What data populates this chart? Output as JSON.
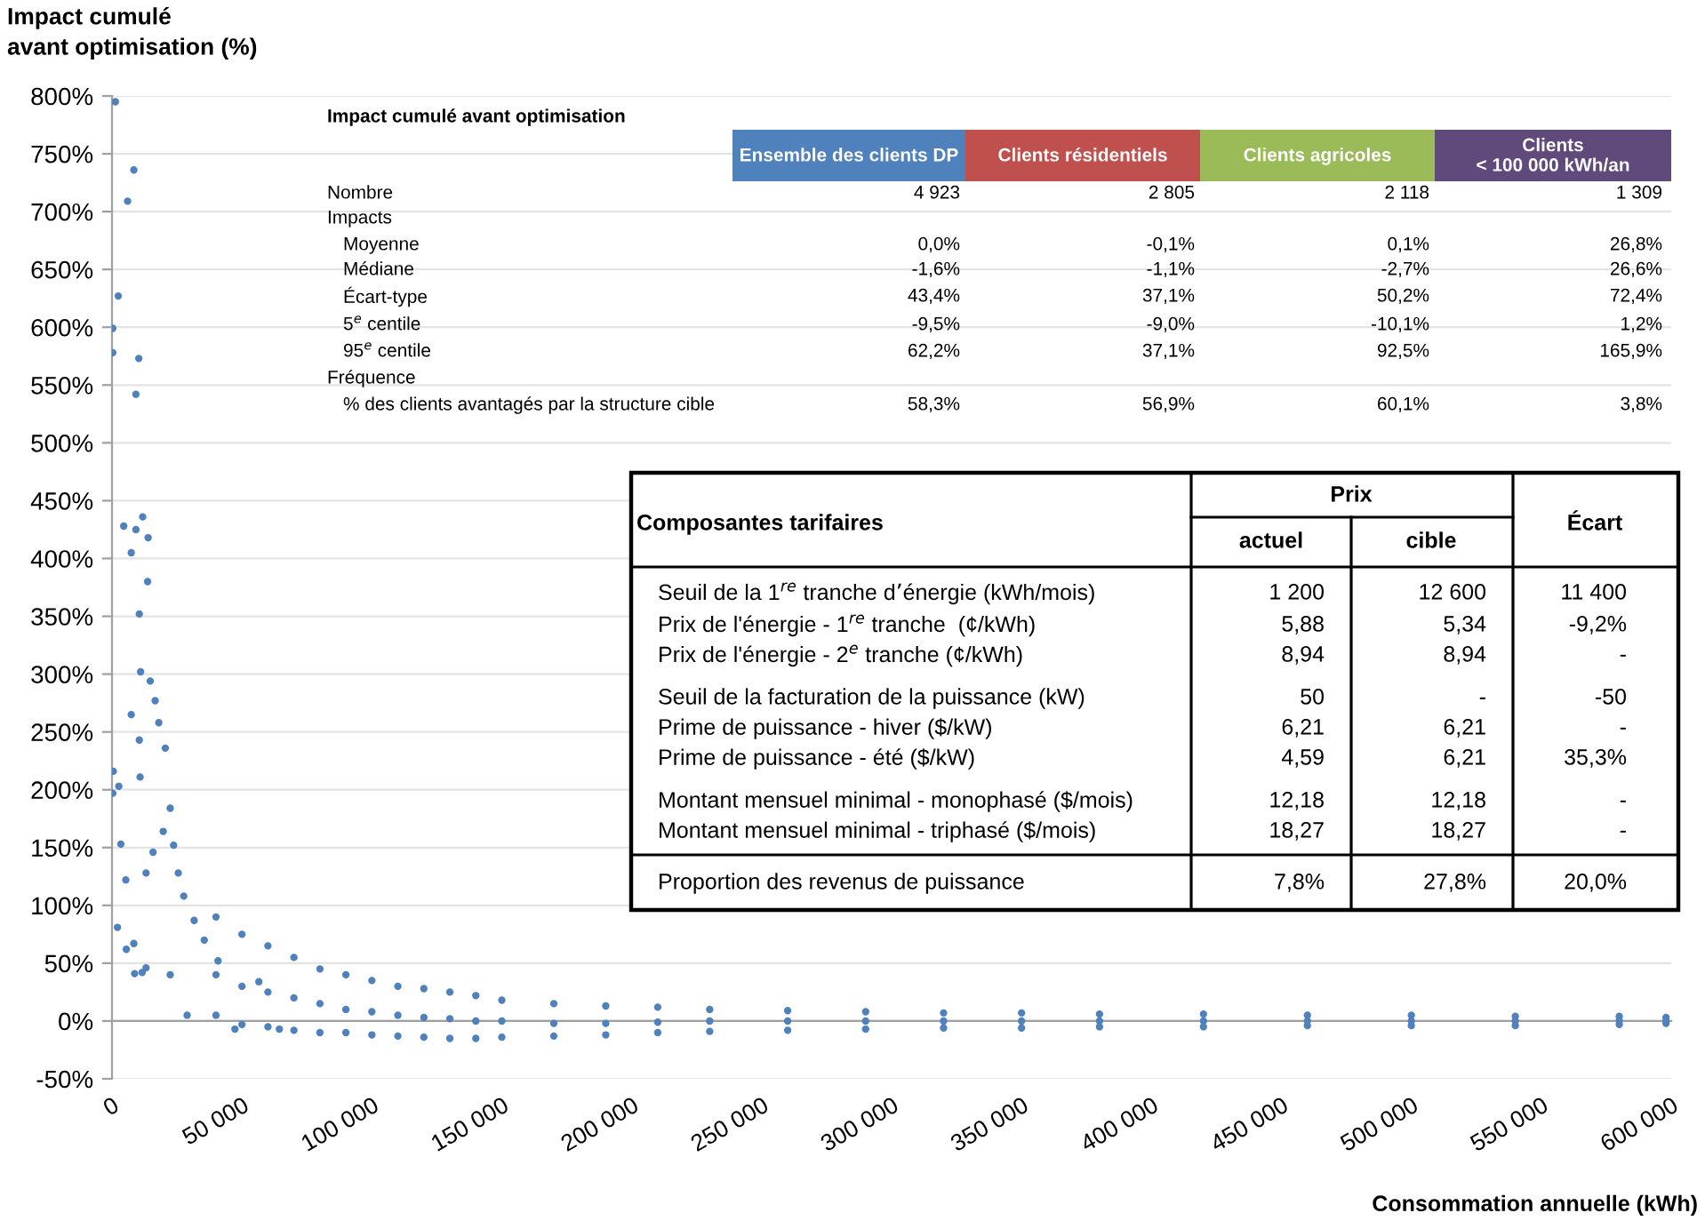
{
  "chart_data": {
    "type": "scatter",
    "xlabel": "Consommation annuelle (kWh)",
    "ylabel": "Impact cumulé\navant optimisation (%)",
    "xlim": [
      0,
      600000
    ],
    "xticks": [
      0,
      {
        "value": 50000,
        "label": "50 000"
      },
      {
        "value": 100000,
        "label": "100 000"
      },
      {
        "value": 150000,
        "label": "150 000"
      },
      {
        "value": 200000,
        "label": "200 000"
      },
      {
        "value": 250000,
        "label": "250 000"
      },
      {
        "value": 300000,
        "label": "300 000"
      },
      {
        "value": 350000,
        "label": "350 000"
      },
      {
        "value": 400000,
        "label": "400 000"
      },
      {
        "value": 450000,
        "label": "450 000"
      },
      {
        "value": 500000,
        "label": "500 000"
      },
      {
        "value": 550000,
        "label": "550 000"
      },
      {
        "value": 600000,
        "label": "600 000"
      }
    ],
    "ylim": [
      -50,
      800
    ],
    "yticks": [
      {
        "value": -50,
        "label": "-50%"
      },
      {
        "value": 0,
        "label": "0%"
      },
      {
        "value": 50,
        "label": "50%"
      },
      {
        "value": 100,
        "label": "100%"
      },
      {
        "value": 150,
        "label": "150%"
      },
      {
        "value": 200,
        "label": "200%"
      },
      {
        "value": 250,
        "label": "250%"
      },
      {
        "value": 300,
        "label": "300%"
      },
      {
        "value": 350,
        "label": "350%"
      },
      {
        "value": 400,
        "label": "400%"
      },
      {
        "value": 450,
        "label": "450%"
      },
      {
        "value": 500,
        "label": "500%"
      },
      {
        "value": 550,
        "label": "550%"
      },
      {
        "value": 600,
        "label": "600%"
      },
      {
        "value": 650,
        "label": "650%"
      },
      {
        "value": 700,
        "label": "700%"
      },
      {
        "value": 750,
        "label": "750%"
      },
      {
        "value": 800,
        "label": "800%"
      }
    ],
    "grid": "y",
    "legend": false,
    "marker": "circle",
    "series": [
      {
        "color": "#4f81bd",
        "x": [
          1300,
          8400,
          6000,
          2400,
          300,
          300,
          10300,
          9200,
          4500,
          11800,
          9200,
          13900,
          7400,
          13700,
          10500,
          11000,
          14700,
          16600,
          7400,
          18000,
          10500,
          20500,
          500,
          2600,
          300,
          10800,
          3400,
          5300,
          2100,
          8400,
          5500,
          8700,
          11600,
          13100,
          15800,
          19700,
          22400,
          23700,
          25500,
          27600,
          31600,
          35500,
          40800,
          28900,
          13100,
          22400,
          47300,
          64400,
          56500,
          40000,
          40000,
          40000,
          50000,
          50000,
          50000,
          60000,
          60000,
          60000,
          70000,
          70000,
          70000,
          80000,
          80000,
          80000,
          90000,
          90000,
          90000,
          100000,
          100000,
          100000,
          110000,
          110000,
          110000,
          120000,
          120000,
          120000,
          130000,
          130000,
          130000,
          140000,
          140000,
          140000,
          150000,
          150000,
          150000,
          170000,
          170000,
          170000,
          190000,
          190000,
          190000,
          210000,
          210000,
          210000,
          230000,
          230000,
          230000,
          260000,
          260000,
          260000,
          290000,
          290000,
          290000,
          320000,
          320000,
          320000,
          350000,
          350000,
          350000,
          380000,
          380000,
          380000,
          420000,
          420000,
          420000,
          460000,
          460000,
          460000,
          500000,
          500000,
          500000,
          540000,
          540000,
          540000,
          580000,
          580000,
          580000,
          598000,
          598000,
          598000
        ],
        "values": [
          795,
          736,
          709,
          627,
          599,
          578,
          573,
          542,
          428,
          436,
          425,
          418,
          405,
          380,
          352,
          302,
          294,
          277,
          265,
          258,
          243,
          236,
          216,
          203,
          197,
          211,
          153,
          122,
          81,
          67,
          62,
          41,
          42,
          128,
          146,
          164,
          184,
          152,
          128,
          108,
          87,
          70,
          52,
          5,
          46,
          40,
          -7,
          -7,
          34,
          90,
          40,
          5,
          75,
          30,
          -3,
          65,
          25,
          -5,
          55,
          20,
          -8,
          45,
          15,
          -10,
          40,
          10,
          -10,
          35,
          8,
          -12,
          30,
          5,
          -13,
          28,
          3,
          -14,
          25,
          2,
          -15,
          22,
          0,
          -15,
          18,
          0,
          -14,
          15,
          -2,
          -13,
          13,
          -2,
          -12,
          12,
          -1,
          -10,
          10,
          0,
          -9,
          9,
          0,
          -8,
          8,
          0,
          -7,
          7,
          0,
          -6,
          7,
          0,
          -6,
          6,
          0,
          -5,
          6,
          0,
          -5,
          5,
          0,
          -4,
          5,
          0,
          -4,
          4,
          0,
          -4,
          4,
          0,
          -3,
          3,
          0,
          -2
        ]
      }
    ],
    "annotations": [
      "Impact cumulé avant optimisation",
      "Ensemble des clients DP",
      "Clients résidentiels",
      "Clients agricoles",
      "Clients\n< 100 000 kWh/an",
      "Nombre",
      "4 923",
      "2 805",
      "2 118",
      "1 309",
      "Impacts",
      "Moyenne",
      "0,0%",
      "-0,1%",
      "0,1%",
      "26,8%",
      "Médiane",
      "-1,6%",
      "-1,1%",
      "-2,7%",
      "26,6%",
      "Écart-type",
      "43,4%",
      "37,1%",
      "50,2%",
      "72,4%",
      "5$^{e}$ centile",
      "-9,5%",
      "-9,0%",
      "-10,1%",
      "1,2%",
      "95$^{e}$ centile",
      "62,2%",
      "37,1%",
      "92,5%",
      "165,9%",
      "Fréquence",
      "% des clients avantagés par la structure cible",
      "58,3%",
      "56,9%",
      "60,1%",
      "3,8%",
      "Composantes tarifaires",
      "Prix",
      "actuel",
      "cible",
      "Écart",
      "Seuil de la 1$^{re}$ tranche d’énergie (kWh/mois)",
      "1 200",
      "12 600",
      "11 400",
      "Prix de l'énergie - 1$^{re}$ tranche  (¢/kWh)",
      "5,88",
      "5,34",
      "-9,2%",
      "Prix de l'énergie - 2$^{e}$ tranche (¢/kWh)",
      "8,94",
      "8,94",
      "-",
      "Seuil de la facturation de la puissance (kW)",
      "50",
      "-",
      "-50",
      "Prime de puissance - hiver ($/kW)",
      "6,21",
      "6,21",
      "-",
      "Prime de puissance - été ($/kW)",
      "4,59",
      "6,21",
      "35,3%",
      "Montant mensuel minimal - monophasé ($/mois)",
      "12,18",
      "12,18",
      "-",
      "Montant mensuel minimal - triphasé ($/mois)",
      "18,27",
      "18,27",
      "-",
      "Proportion des revenus de puissance",
      "7,8%",
      "27,8%",
      "20,0%"
    ]
  }
}
